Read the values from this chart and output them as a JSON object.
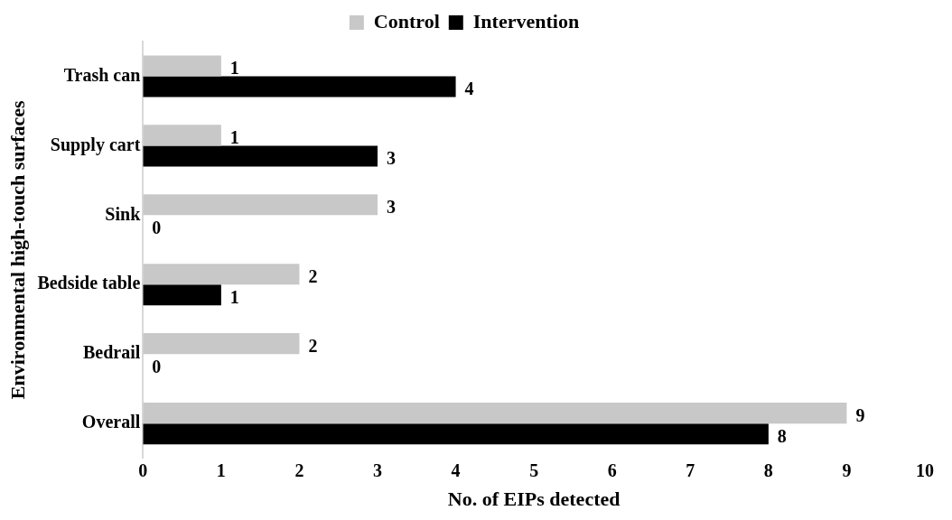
{
  "chart_data": {
    "type": "bar",
    "orientation": "horizontal",
    "categories": [
      "Trash can",
      "Supply cart",
      "Sink",
      "Bedside table",
      "Bedrail",
      "Overall"
    ],
    "series": [
      {
        "name": "Control",
        "color": "#c8c8c8",
        "values": [
          1,
          1,
          3,
          2,
          2,
          9
        ]
      },
      {
        "name": "Intervention",
        "color": "#000000",
        "values": [
          4,
          3,
          0,
          1,
          0,
          8
        ]
      }
    ],
    "xlabel": "No. of EIPs detected",
    "ylabel": "Environmental high-touch surfaces",
    "xlim": [
      0,
      10
    ],
    "xticks": [
      0,
      1,
      2,
      3,
      4,
      5,
      6,
      7,
      8,
      9,
      10
    ],
    "grid": false,
    "legend": "top",
    "data_labels": true
  }
}
